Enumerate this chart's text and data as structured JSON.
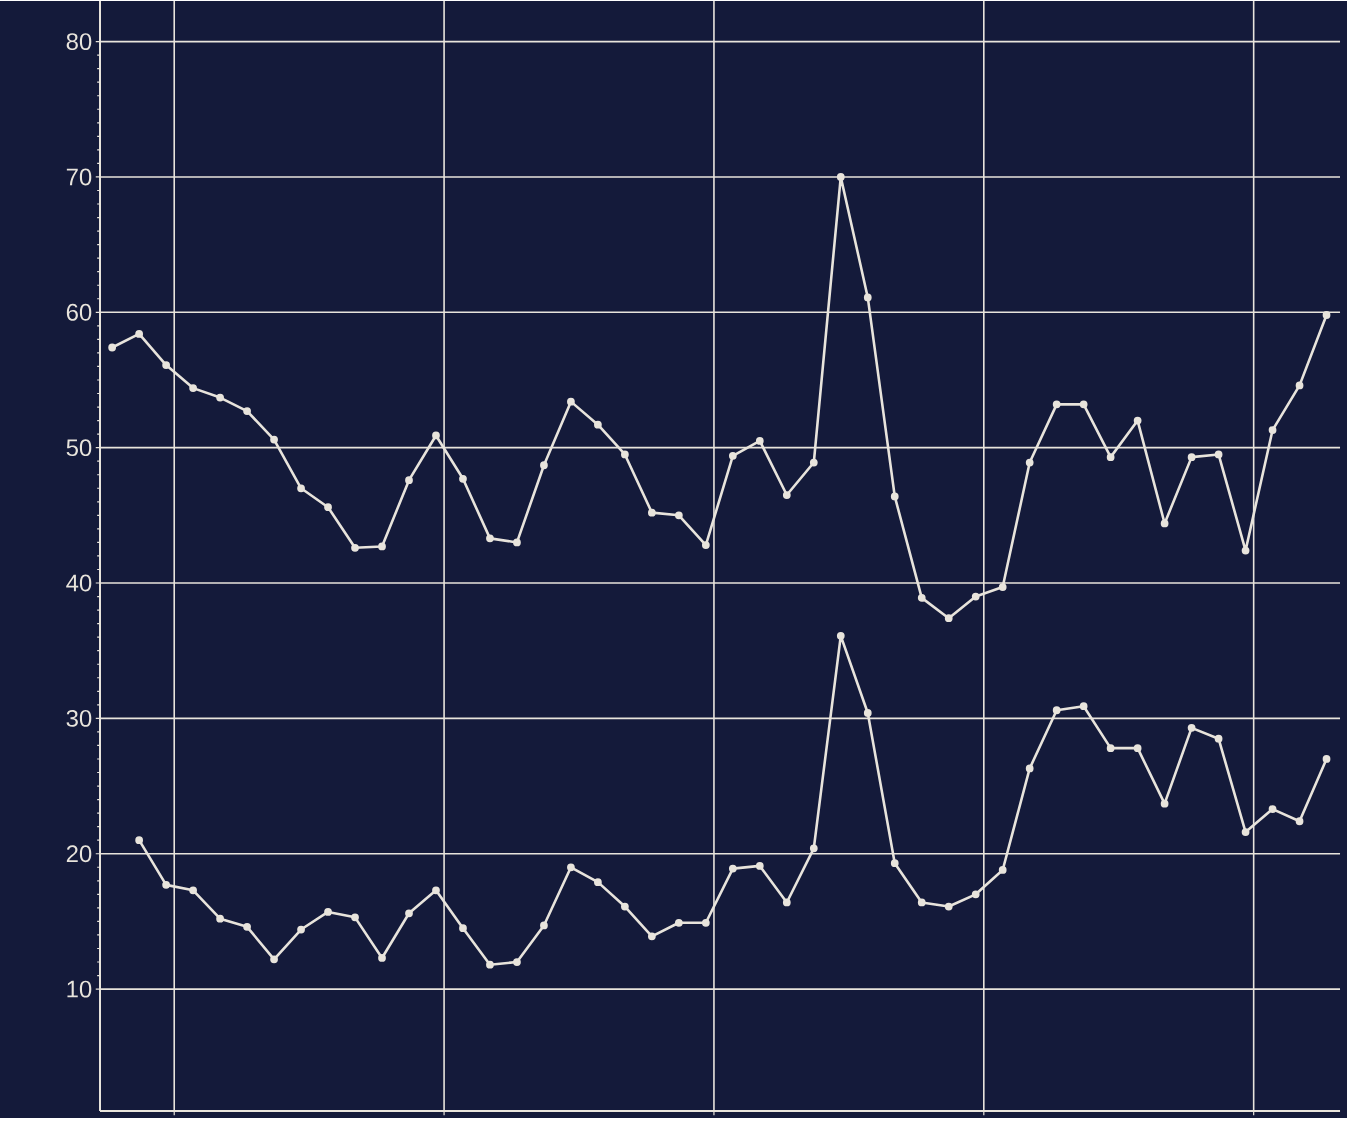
{
  "chart_data": {
    "type": "line",
    "ylim": [
      1,
      83
    ],
    "categories": [
      null,
      null,
      null,
      null,
      null,
      null,
      null,
      null,
      null,
      null,
      null,
      null,
      null,
      null,
      null,
      null,
      null,
      null,
      null,
      null,
      null,
      null,
      null,
      null,
      null,
      null,
      null,
      null,
      null,
      null,
      null,
      null,
      null,
      null,
      null,
      null,
      null,
      null,
      null,
      null,
      null,
      null,
      null,
      null,
      null,
      null
    ],
    "yticks": [
      10,
      20,
      30,
      40,
      50,
      60,
      70,
      80
    ],
    "grid": true,
    "marker": "circle",
    "line_style": "solid",
    "series": [
      {
        "color": "#e8e4dc",
        "values": [
          57.4,
          58.4,
          56.1,
          54.4,
          53.7,
          52.7,
          50.6,
          47.0,
          45.6,
          42.6,
          42.7,
          47.6,
          50.9,
          47.7,
          43.3,
          43.0,
          48.7,
          53.4,
          51.7,
          49.5,
          45.2,
          45.0,
          42.8,
          49.4,
          50.5,
          46.5,
          48.9,
          70.0,
          61.1,
          46.4,
          38.9,
          37.4,
          39.0,
          39.7,
          48.9,
          53.2,
          53.2,
          49.3,
          52.0,
          44.4,
          49.3,
          49.5,
          42.4,
          51.3,
          54.6,
          59.8
        ]
      },
      {
        "color": "#e8e4dc",
        "values": [
          null,
          21.0,
          17.7,
          17.3,
          15.2,
          14.6,
          12.2,
          14.4,
          15.7,
          15.3,
          12.3,
          15.6,
          17.3,
          14.5,
          11.8,
          12.0,
          14.7,
          19.0,
          17.9,
          16.1,
          13.9,
          14.9,
          14.9,
          18.9,
          19.1,
          16.4,
          20.4,
          36.1,
          30.4,
          19.3,
          16.4,
          16.1,
          17.0,
          18.8,
          26.3,
          30.6,
          30.9,
          27.8,
          27.8,
          23.7,
          29.3,
          28.5,
          21.6,
          23.3,
          22.4,
          27.0
        ]
      }
    ]
  }
}
